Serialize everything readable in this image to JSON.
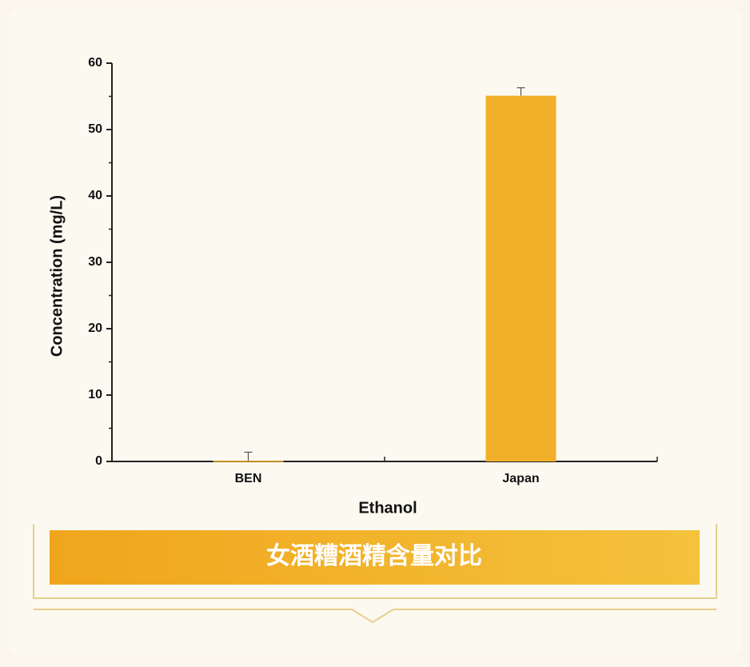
{
  "chart_data": {
    "type": "bar",
    "categories": [
      "BEN",
      "Japan"
    ],
    "values": [
      0.1,
      55.1
    ],
    "errors": [
      1.3,
      1.2
    ],
    "color": "#f2b02a",
    "ylim": [
      0,
      60
    ],
    "yticks": [
      0,
      10,
      20,
      30,
      40,
      50,
      60
    ],
    "x_label": "Ethanol",
    "y_label": "Concentration (mg/L)"
  },
  "caption": "女酒糟酒精含量对比"
}
